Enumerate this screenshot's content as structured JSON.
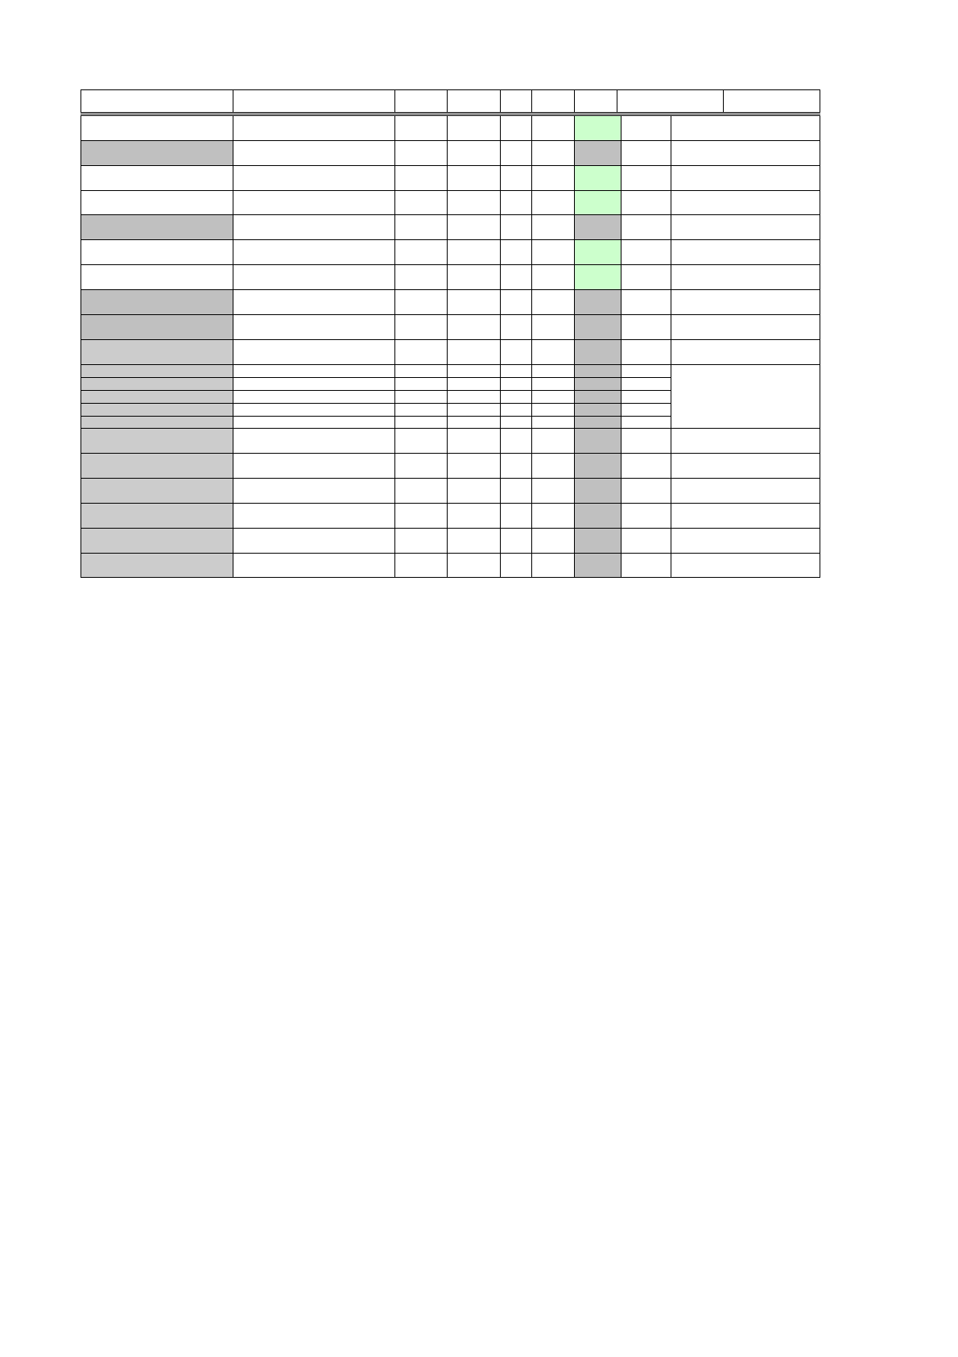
{
  "table": {
    "header_cells": 9,
    "body_rows": 22,
    "colors": {
      "highlight_green": "#ccffcc",
      "shade_gray": "#c0c0c0",
      "shade_light_gray": "#cccccc",
      "border": "#000000"
    }
  }
}
